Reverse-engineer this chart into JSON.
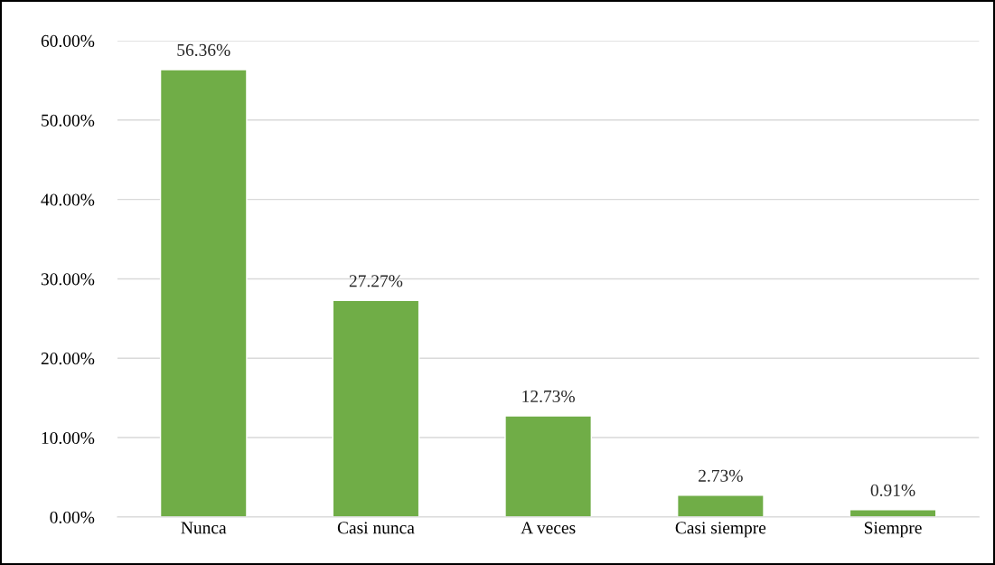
{
  "chart_data": {
    "type": "bar",
    "categories": [
      "Nunca",
      "Casi nunca",
      "A veces",
      "Casi siempre",
      "Siempre"
    ],
    "values": [
      56.36,
      27.27,
      12.73,
      2.73,
      0.91
    ],
    "value_labels": [
      "56.36%",
      "27.27%",
      "12.73%",
      "2.73%",
      "0.91%"
    ],
    "color": "#70ad47",
    "ylim": [
      0,
      60
    ],
    "yticks": [
      {
        "value": 0,
        "label": "0.00%"
      },
      {
        "value": 10,
        "label": "10.00%"
      },
      {
        "value": 20,
        "label": "20.00%"
      },
      {
        "value": 30,
        "label": "30.00%"
      },
      {
        "value": 40,
        "label": "40.00%"
      },
      {
        "value": 50,
        "label": "50.00%"
      },
      {
        "value": 60,
        "label": "60.00%"
      }
    ],
    "grid": "y",
    "legend": false
  }
}
